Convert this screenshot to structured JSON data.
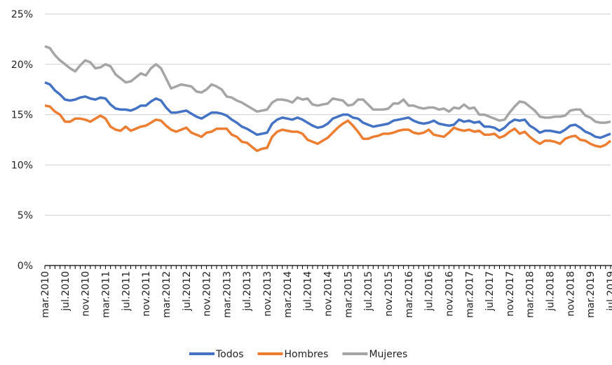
{
  "chart_data": {
    "type": "line",
    "categories": [
      "mar.2010",
      null,
      null,
      null,
      "jul.2010",
      null,
      null,
      null,
      "nov.2010",
      null,
      null,
      null,
      "mar.2011",
      null,
      null,
      null,
      "jul.2011",
      null,
      null,
      null,
      "nov.2011",
      null,
      null,
      null,
      "mar.2012",
      null,
      null,
      null,
      "jul.2012",
      null,
      null,
      null,
      "nov.2012",
      null,
      null,
      null,
      "mar.2013",
      null,
      null,
      null,
      "jul.2013",
      null,
      null,
      null,
      "nov.2013",
      null,
      null,
      null,
      "mar.2014",
      null,
      null,
      null,
      "jul.2014",
      null,
      null,
      null,
      "nov.2014",
      null,
      null,
      null,
      "mar.2015",
      null,
      null,
      null,
      "jul.2015",
      null,
      null,
      null,
      "nov.2015",
      null,
      null,
      null,
      "mar.2016",
      null,
      null,
      null,
      "jul.2016",
      null,
      null,
      null,
      "nov.2016",
      null,
      null,
      null,
      "mar.2017",
      null,
      null,
      null,
      "jul.2017",
      null,
      null,
      null,
      "nov.2017",
      null,
      null,
      null,
      "mar.2018",
      null,
      null,
      null,
      "jul.2018",
      null,
      null,
      null,
      "nov.2018",
      null,
      null,
      null,
      "mar.2019",
      null,
      null,
      null,
      "jul.2019"
    ],
    "series": [
      {
        "name": "Todos",
        "color": "#4472c4",
        "values": [
          18.2,
          18.0,
          17.4,
          17.0,
          16.5,
          16.4,
          16.5,
          16.7,
          16.8,
          16.6,
          16.5,
          16.7,
          16.6,
          16.0,
          15.6,
          15.5,
          15.5,
          15.4,
          15.6,
          15.9,
          15.9,
          16.3,
          16.6,
          16.4,
          15.7,
          15.2,
          15.2,
          15.3,
          15.4,
          15.1,
          14.8,
          14.6,
          14.9,
          15.2,
          15.2,
          15.1,
          14.9,
          14.5,
          14.2,
          13.8,
          13.6,
          13.3,
          13.0,
          13.1,
          13.2,
          14.1,
          14.5,
          14.7,
          14.6,
          14.5,
          14.7,
          14.5,
          14.2,
          13.9,
          13.7,
          13.8,
          14.1,
          14.6,
          14.8,
          15.0,
          15.0,
          14.7,
          14.6,
          14.2,
          14.0,
          13.8,
          13.9,
          14.0,
          14.1,
          14.4,
          14.5,
          14.6,
          14.7,
          14.4,
          14.2,
          14.1,
          14.2,
          14.4,
          14.1,
          14.0,
          13.9,
          14.0,
          14.5,
          14.3,
          14.4,
          14.2,
          14.3,
          13.8,
          13.8,
          13.7,
          13.4,
          13.7,
          14.2,
          14.5,
          14.4,
          14.5,
          13.9,
          13.6,
          13.2,
          13.4,
          13.4,
          13.3,
          13.2,
          13.5,
          13.9,
          14.0,
          13.7,
          13.3,
          13.1,
          12.8,
          12.7,
          12.9,
          13.1
        ]
      },
      {
        "name": "Hombres",
        "color": "#ed7d31",
        "values": [
          15.9,
          15.8,
          15.3,
          15.0,
          14.3,
          14.3,
          14.6,
          14.6,
          14.5,
          14.3,
          14.6,
          14.9,
          14.6,
          13.8,
          13.5,
          13.4,
          13.8,
          13.4,
          13.6,
          13.8,
          13.9,
          14.2,
          14.5,
          14.4,
          13.9,
          13.5,
          13.3,
          13.5,
          13.7,
          13.2,
          13.0,
          12.8,
          13.2,
          13.3,
          13.6,
          13.6,
          13.6,
          13.0,
          12.8,
          12.3,
          12.2,
          11.8,
          11.4,
          11.6,
          11.7,
          12.8,
          13.3,
          13.5,
          13.4,
          13.3,
          13.3,
          13.1,
          12.5,
          12.3,
          12.1,
          12.4,
          12.7,
          13.2,
          13.7,
          14.1,
          14.4,
          13.9,
          13.3,
          12.6,
          12.6,
          12.8,
          12.9,
          13.1,
          13.1,
          13.2,
          13.4,
          13.5,
          13.5,
          13.2,
          13.1,
          13.2,
          13.5,
          13.0,
          12.9,
          12.8,
          13.2,
          13.7,
          13.5,
          13.4,
          13.5,
          13.3,
          13.4,
          13.0,
          13.0,
          13.1,
          12.7,
          12.9,
          13.3,
          13.6,
          13.1,
          13.3,
          12.8,
          12.4,
          12.1,
          12.4,
          12.4,
          12.3,
          12.1,
          12.6,
          12.8,
          12.9,
          12.5,
          12.4,
          12.1,
          11.9,
          11.8,
          12.0,
          12.4
        ]
      },
      {
        "name": "Mujeres",
        "color": "#a5a5a5",
        "values": [
          21.8,
          21.6,
          20.9,
          20.4,
          20.0,
          19.6,
          19.3,
          19.9,
          20.4,
          20.2,
          19.6,
          19.7,
          20.0,
          19.8,
          19.0,
          18.6,
          18.2,
          18.3,
          18.7,
          19.1,
          18.9,
          19.6,
          20.0,
          19.6,
          18.6,
          17.6,
          17.8,
          18.0,
          17.9,
          17.8,
          17.3,
          17.2,
          17.5,
          18.0,
          17.8,
          17.5,
          16.8,
          16.7,
          16.4,
          16.2,
          15.9,
          15.6,
          15.3,
          15.4,
          15.5,
          16.2,
          16.5,
          16.5,
          16.4,
          16.2,
          16.7,
          16.5,
          16.6,
          16.0,
          15.9,
          16.0,
          16.1,
          16.6,
          16.5,
          16.4,
          15.9,
          16.0,
          16.5,
          16.5,
          16.0,
          15.5,
          15.5,
          15.5,
          15.6,
          16.1,
          16.1,
          16.5,
          15.9,
          15.9,
          15.7,
          15.6,
          15.7,
          15.7,
          15.5,
          15.6,
          15.3,
          15.7,
          15.6,
          16.0,
          15.6,
          15.7,
          15.0,
          15.0,
          14.8,
          14.6,
          14.4,
          14.5,
          15.2,
          15.8,
          16.3,
          16.2,
          15.8,
          15.4,
          14.8,
          14.7,
          14.7,
          14.8,
          14.8,
          14.9,
          15.4,
          15.5,
          15.5,
          14.9,
          14.7,
          14.3,
          14.2,
          14.2,
          14.3
        ]
      }
    ],
    "ylim": [
      0,
      25
    ],
    "yticks": [
      {
        "value": 0,
        "label": "0%"
      },
      {
        "value": 5,
        "label": "5%"
      },
      {
        "value": 10,
        "label": "10%"
      },
      {
        "value": 15,
        "label": "15%"
      },
      {
        "value": 20,
        "label": "20%"
      },
      {
        "value": 25,
        "label": "25%"
      }
    ],
    "grid": true,
    "legend": "bottom"
  }
}
